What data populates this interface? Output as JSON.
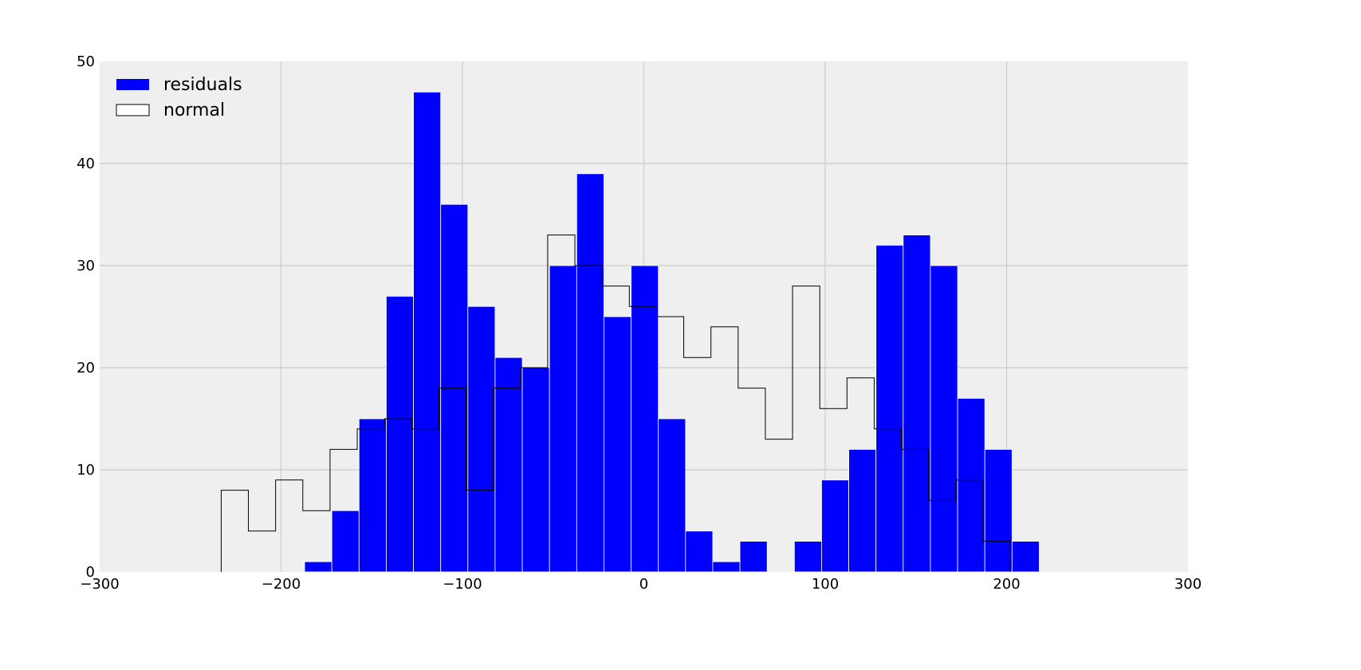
{
  "chart_data": {
    "type": "histogram",
    "grid": true,
    "legend_placement": "top-left",
    "xlim": [
      -300,
      300
    ],
    "ylim": [
      0,
      50
    ],
    "x_ticks": [
      -300,
      -200,
      -100,
      0,
      100,
      200,
      300
    ],
    "x_tick_labels": [
      "−300",
      "−200",
      "−100",
      "0",
      "100",
      "200",
      "300"
    ],
    "y_ticks": [
      0,
      10,
      20,
      30,
      40,
      50
    ],
    "y_tick_labels": [
      "0",
      "10",
      "20",
      "30",
      "40",
      "50"
    ],
    "colors": {
      "plot_background": "#efefef",
      "grid": "#cbcbcb",
      "residuals": "#0000ff",
      "normal": "#000000"
    },
    "series": [
      {
        "name": "residuals",
        "style": "filled bars",
        "bins": [
          {
            "x0": -187,
            "x1": -172,
            "count": 1
          },
          {
            "x0": -172,
            "x1": -157,
            "count": 6
          },
          {
            "x0": -157,
            "x1": -142,
            "count": 15
          },
          {
            "x0": -142,
            "x1": -127,
            "count": 27
          },
          {
            "x0": -127,
            "x1": -112,
            "count": 47
          },
          {
            "x0": -112,
            "x1": -97,
            "count": 36
          },
          {
            "x0": -97,
            "x1": -82,
            "count": 26
          },
          {
            "x0": -82,
            "x1": -67,
            "count": 21
          },
          {
            "x0": -67,
            "x1": -52,
            "count": 20
          },
          {
            "x0": -52,
            "x1": -37,
            "count": 30
          },
          {
            "x0": -37,
            "x1": -22,
            "count": 39
          },
          {
            "x0": -22,
            "x1": -7,
            "count": 25
          },
          {
            "x0": -7,
            "x1": 8,
            "count": 30
          },
          {
            "x0": 8,
            "x1": 23,
            "count": 15
          },
          {
            "x0": 23,
            "x1": 38,
            "count": 4
          },
          {
            "x0": 38,
            "x1": 53,
            "count": 1
          },
          {
            "x0": 53,
            "x1": 68,
            "count": 3
          },
          {
            "x0": 68,
            "x1": 83,
            "count": 0
          },
          {
            "x0": 83,
            "x1": 98,
            "count": 3
          },
          {
            "x0": 98,
            "x1": 113,
            "count": 9
          },
          {
            "x0": 113,
            "x1": 128,
            "count": 12
          },
          {
            "x0": 128,
            "x1": 143,
            "count": 32
          },
          {
            "x0": 143,
            "x1": 158,
            "count": 33
          },
          {
            "x0": 158,
            "x1": 173,
            "count": 30
          },
          {
            "x0": 173,
            "x1": 188,
            "count": 17
          },
          {
            "x0": 188,
            "x1": 203,
            "count": 12
          },
          {
            "x0": 203,
            "x1": 218,
            "count": 3
          }
        ]
      },
      {
        "name": "normal",
        "style": "step outline",
        "bins": [
          {
            "x0": -233,
            "x1": -218,
            "count": 8
          },
          {
            "x0": -218,
            "x1": -203,
            "count": 4
          },
          {
            "x0": -203,
            "x1": -188,
            "count": 9
          },
          {
            "x0": -188,
            "x1": -173,
            "count": 6
          },
          {
            "x0": -173,
            "x1": -158,
            "count": 12
          },
          {
            "x0": -158,
            "x1": -143,
            "count": 14
          },
          {
            "x0": -143,
            "x1": -128,
            "count": 15
          },
          {
            "x0": -128,
            "x1": -113,
            "count": 14
          },
          {
            "x0": -113,
            "x1": -98,
            "count": 18
          },
          {
            "x0": -98,
            "x1": -83,
            "count": 8
          },
          {
            "x0": -83,
            "x1": -68,
            "count": 18
          },
          {
            "x0": -68,
            "x1": -53,
            "count": 20
          },
          {
            "x0": -53,
            "x1": -38,
            "count": 33
          },
          {
            "x0": -38,
            "x1": -23,
            "count": 30
          },
          {
            "x0": -23,
            "x1": -8,
            "count": 28
          },
          {
            "x0": -8,
            "x1": 7,
            "count": 26
          },
          {
            "x0": 7,
            "x1": 22,
            "count": 25
          },
          {
            "x0": 22,
            "x1": 37,
            "count": 21
          },
          {
            "x0": 37,
            "x1": 52,
            "count": 24
          },
          {
            "x0": 52,
            "x1": 67,
            "count": 18
          },
          {
            "x0": 67,
            "x1": 82,
            "count": 13
          },
          {
            "x0": 82,
            "x1": 97,
            "count": 28
          },
          {
            "x0": 97,
            "x1": 112,
            "count": 16
          },
          {
            "x0": 112,
            "x1": 127,
            "count": 19
          },
          {
            "x0": 127,
            "x1": 142,
            "count": 14
          },
          {
            "x0": 142,
            "x1": 157,
            "count": 12
          },
          {
            "x0": 157,
            "x1": 172,
            "count": 7
          },
          {
            "x0": 172,
            "x1": 187,
            "count": 9
          },
          {
            "x0": 187,
            "x1": 202,
            "count": 3
          }
        ]
      }
    ]
  }
}
